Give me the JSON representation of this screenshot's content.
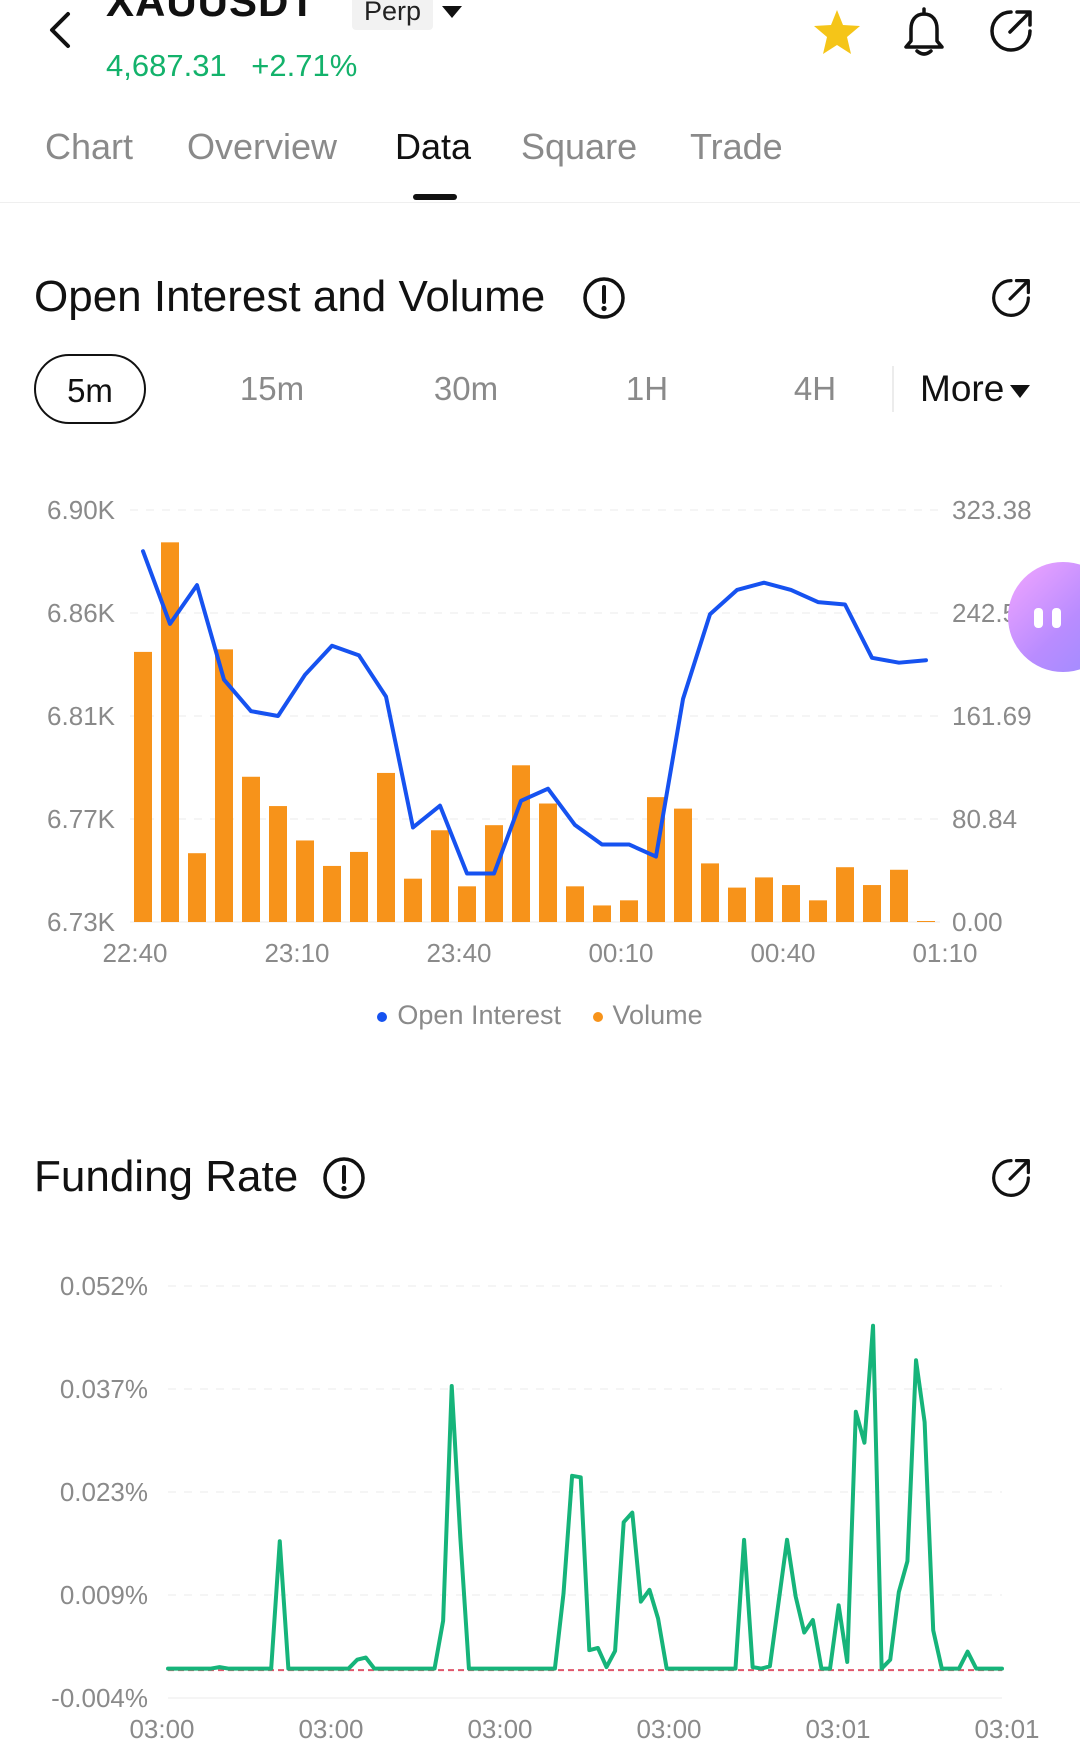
{
  "header": {
    "symbol": "XAUUSDT",
    "contract_type": "Perp",
    "price": "4,687.31",
    "change": "+2.71%",
    "icons": [
      "back-icon",
      "chevron-down-icon",
      "star-icon",
      "bell-icon",
      "share-icon"
    ],
    "colors": {
      "up": "#13b26b",
      "favorite": "#f5c518"
    }
  },
  "tabs": [
    {
      "label": "Chart",
      "active": false
    },
    {
      "label": "Overview",
      "active": false
    },
    {
      "label": "Data",
      "active": true
    },
    {
      "label": "Square",
      "active": false
    },
    {
      "label": "Trade",
      "active": false
    }
  ],
  "oi_section": {
    "title": "Open Interest and Volume",
    "intervals": [
      "5m",
      "15m",
      "30m",
      "1H",
      "4H"
    ],
    "active_interval": "5m",
    "more_label": "More"
  },
  "funding_section": {
    "title": "Funding Rate"
  },
  "chart_data": [
    {
      "type": "bar",
      "title": "Open Interest and Volume",
      "x_ticks": [
        "22:40",
        "23:10",
        "23:40",
        "00:10",
        "00:40",
        "01:10"
      ],
      "y_left_ticks": [
        "6.90K",
        "6.86K",
        "6.81K",
        "6.77K",
        "6.73K"
      ],
      "y_right_ticks": [
        "323.38",
        "242.54",
        "161.69",
        "80.84",
        "0.00"
      ],
      "y_left_range": [
        6730,
        6900
      ],
      "y_right_range": [
        0,
        323.38
      ],
      "grid": true,
      "legend": "bottom-center",
      "series": [
        {
          "name": "Open Interest",
          "kind": "line",
          "axis": "left",
          "color": "#1652f0",
          "values": [
            6883,
            6853,
            6869,
            6830,
            6817,
            6815,
            6832,
            6844,
            6840,
            6823,
            6769,
            6778,
            6750,
            6750,
            6780,
            6785,
            6770,
            6762,
            6762,
            6757,
            6822,
            6857,
            6867,
            6870,
            6867,
            6862,
            6861,
            6839,
            6837,
            6838
          ]
        },
        {
          "name": "Volume",
          "kind": "bar",
          "axis": "right",
          "color": "#f7931a",
          "values": [
            212,
            298,
            54,
            214,
            114,
            91,
            64,
            44,
            55,
            117,
            34,
            72,
            28,
            76,
            123,
            93,
            28,
            13,
            17,
            98,
            89,
            46,
            27,
            35,
            29,
            17,
            43,
            29,
            41,
            0
          ]
        }
      ]
    },
    {
      "type": "line",
      "title": "Funding Rate",
      "x_ticks": [
        "03:00",
        "03:00",
        "03:00",
        "03:00",
        "03:01",
        "03:01"
      ],
      "y_ticks": [
        "0.052%",
        "0.037%",
        "0.023%",
        "0.009%",
        "-0.004%"
      ],
      "y_range": [
        -0.004,
        0.052
      ],
      "grid": true,
      "series": [
        {
          "name": "Funding Rate",
          "color": "#16b47a",
          "values": [
            0.0,
            0.0,
            0.0,
            0.0,
            0.0,
            0.0,
            0.0002,
            0.0,
            0.0,
            0.0,
            0.0,
            0.0,
            0.0,
            0.0173,
            0.0,
            0.0,
            0.0,
            0.0,
            0.0,
            0.0,
            0.0,
            0.0,
            0.0012,
            0.0015,
            0.0,
            0.0,
            0.0,
            0.0,
            0.0,
            0.0,
            0.0,
            0.0,
            0.0065,
            0.0384,
            0.0178,
            0.0,
            0.0,
            0.0,
            0.0,
            0.0,
            0.0,
            0.0,
            0.0,
            0.0,
            0.0,
            0.0,
            0.0102,
            0.0262,
            0.026,
            0.0025,
            0.0028,
            0.0002,
            0.0024,
            0.0199,
            0.0212,
            0.0091,
            0.0107,
            0.0068,
            0.0,
            0.0,
            0.0,
            0.0,
            0.0,
            0.0,
            0.0,
            0.0,
            0.0,
            0.0175,
            0.0002,
            0.0,
            0.0003,
            0.0089,
            0.0175,
            0.0098,
            0.0049,
            0.0066,
            0.0,
            0.0,
            0.0086,
            0.0009,
            0.0349,
            0.0307,
            0.0466,
            0.0,
            0.0012,
            0.0104,
            0.0146,
            0.0419,
            0.0335,
            0.0052,
            0.0,
            0.0,
            0.0,
            0.0023,
            0.0,
            0.0,
            0.0,
            0.0
          ]
        }
      ]
    }
  ]
}
